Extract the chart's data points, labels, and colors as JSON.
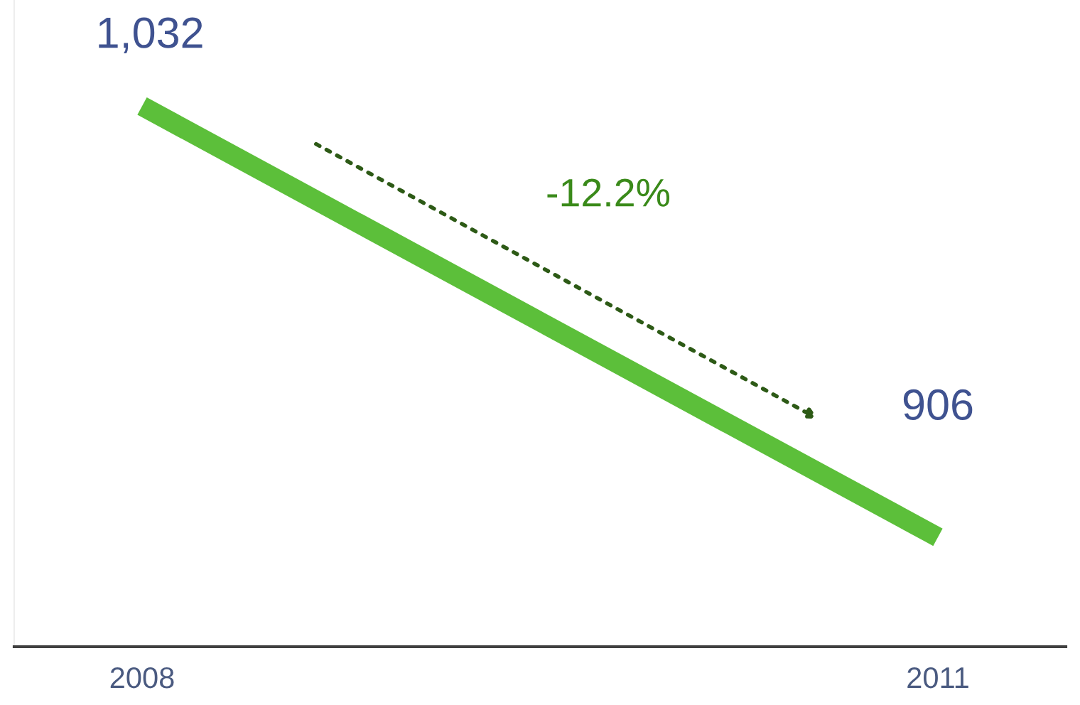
{
  "chart_data": {
    "type": "line",
    "categories": [
      "2008",
      "2011"
    ],
    "series": [
      {
        "color": "#5cbf3a",
        "values": [
          1032,
          906
        ],
        "value_labels": [
          "1,032",
          "906"
        ]
      }
    ],
    "ylim": [
      874,
      1063
    ],
    "annotations": [
      "-12.2%"
    ],
    "grid": false,
    "legend": false,
    "tick_labels": "x",
    "marker": "none",
    "line_style": "solid"
  }
}
